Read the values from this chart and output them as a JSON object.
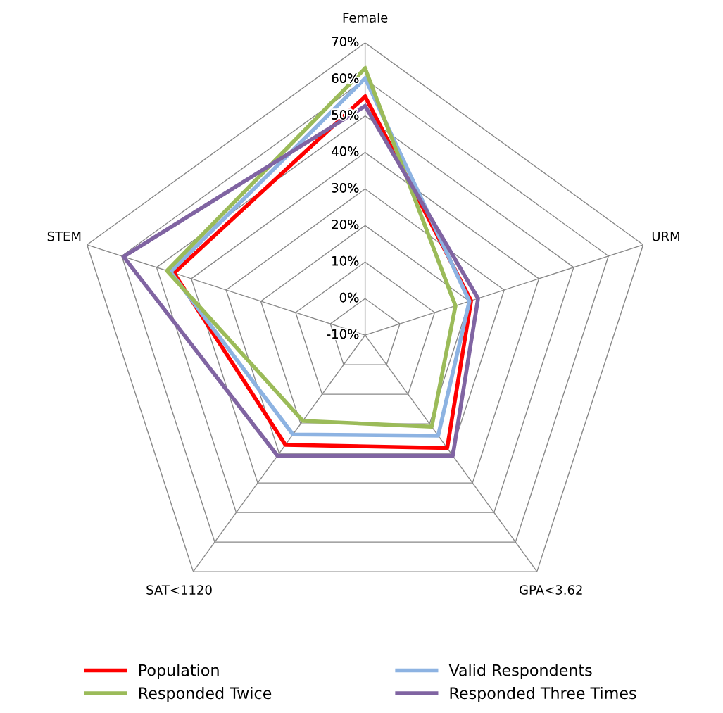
{
  "chart_data": {
    "type": "radar",
    "categories": [
      "Female",
      "URM",
      "GPA<3.62",
      "SAT<1120",
      "STEM"
    ],
    "ylim": [
      -10,
      70
    ],
    "yticks": [
      {
        "value": -10,
        "label": "-10%"
      },
      {
        "value": 0,
        "label": "0%"
      },
      {
        "value": 10,
        "label": "10%"
      },
      {
        "value": 20,
        "label": "20%"
      },
      {
        "value": 30,
        "label": "30%"
      },
      {
        "value": 40,
        "label": "40%"
      },
      {
        "value": 50,
        "label": "50%"
      },
      {
        "value": 60,
        "label": "60%"
      },
      {
        "value": 70,
        "label": "70%"
      }
    ],
    "grid": true,
    "legend": "bottom",
    "marker": "none",
    "series": [
      {
        "name": "Population",
        "color": "#ff0000",
        "values": [
          55.3,
          20.5,
          28.2,
          27.1,
          45
        ]
      },
      {
        "name": "Valid Respondents",
        "color": "#8db3e2",
        "values": [
          60.3,
          20,
          24,
          23.6,
          46
        ]
      },
      {
        "name": "Responded Twice",
        "color": "#9bbb59",
        "values": [
          63,
          16,
          21,
          19,
          47
        ]
      },
      {
        "name": "Responded Three Times",
        "color": "#8064a2",
        "values": [
          52.7,
          22.5,
          30.8,
          30.8,
          59.5
        ]
      }
    ]
  }
}
